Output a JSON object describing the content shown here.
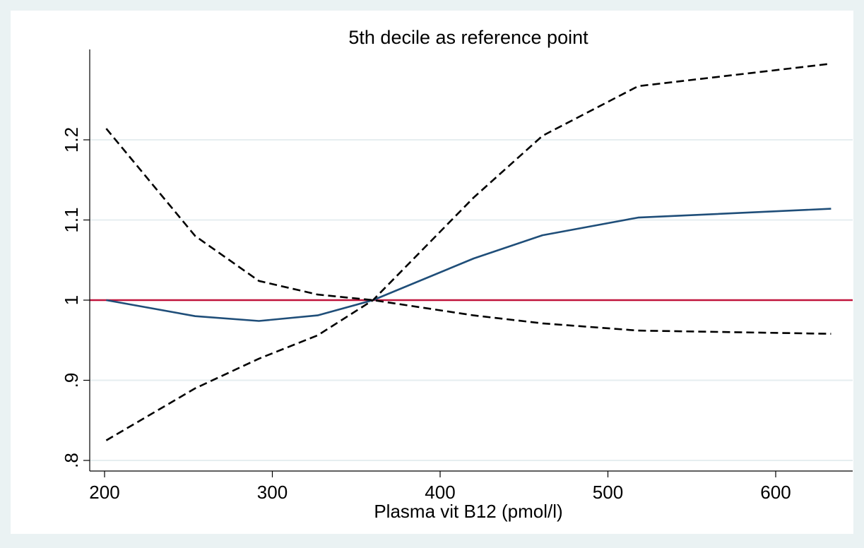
{
  "chart_data": {
    "type": "line",
    "title": "5th decile as reference point",
    "xlabel": "Plasma vit B12 (pmol/l)",
    "ylabel": "",
    "xlim": [
      193,
      634
    ],
    "ylim": [
      0.785,
      1.33
    ],
    "xticks": [
      200,
      300,
      400,
      500,
      600
    ],
    "xtick_labels": [
      "200",
      "300",
      "400",
      "500",
      "600"
    ],
    "yticks": [
      0.8,
      0.9,
      1.0,
      1.1,
      1.2
    ],
    "ytick_labels": [
      ".8",
      ".9",
      "1",
      "1.1",
      "1.2"
    ],
    "grid": "horizontal",
    "legend": "none",
    "reference_line": {
      "y": 1.0,
      "color": "#c0143c"
    },
    "series": [
      {
        "style": "solid",
        "color": "#1f4e79",
        "x": [
          201,
          254,
          292,
          327,
          360,
          420,
          461,
          518,
          633
        ],
        "y": [
          1.0,
          0.98,
          0.974,
          0.981,
          1.0,
          1.052,
          1.081,
          1.103,
          1.114
        ]
      },
      {
        "style": "dashed",
        "color": "#000000",
        "x": [
          201,
          254,
          292,
          327,
          360,
          420,
          461,
          518,
          633
        ],
        "y": [
          1.214,
          1.08,
          1.024,
          1.007,
          1.0,
          0.981,
          0.971,
          0.962,
          0.958
        ]
      },
      {
        "style": "dashed",
        "color": "#000000",
        "x": [
          201,
          254,
          292,
          327,
          360,
          420,
          461,
          518,
          633
        ],
        "y": [
          0.825,
          0.89,
          0.927,
          0.956,
          1.0,
          1.128,
          1.205,
          1.267,
          1.295
        ]
      }
    ]
  }
}
